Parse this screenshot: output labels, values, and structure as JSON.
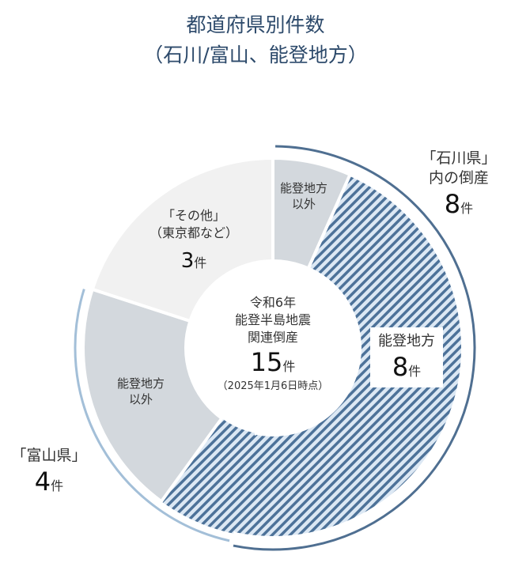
{
  "title": {
    "line1": "都道府県別件数",
    "line2": "（石川/富山、能登地方）"
  },
  "chart_data": {
    "type": "pie",
    "donut": true,
    "total": 15,
    "unit": "件",
    "center": {
      "line1": "令和6年",
      "line2": "能登半島地震",
      "line3": "関連倒産",
      "value": "15",
      "unit": "件",
      "note": "（2025年1月6日時点）"
    },
    "slices": [
      {
        "group": "石川県",
        "label": "能登地方以外",
        "value": 1,
        "fill": "#d3d8dd"
      },
      {
        "group": "石川県",
        "label": "能登地方",
        "value": 7,
        "fill": "hatch"
      },
      {
        "group": "富山県",
        "label": "能登地方",
        "value": 1,
        "fill": "hatch"
      },
      {
        "group": "富山県",
        "label": "能登地方以外",
        "value": 3,
        "fill": "#d3d8dd"
      },
      {
        "group": "その他",
        "label": "その他",
        "value": 3,
        "fill": "#f1f1f1"
      }
    ],
    "labels": {
      "ishikawa_outside": {
        "line1": "能登地方",
        "line2": "以外"
      },
      "noto": {
        "line1": "能登地方",
        "value": "8",
        "unit": "件"
      },
      "toyama_outside": {
        "line1": "能登地方",
        "line2": "以外"
      },
      "other": {
        "line1": "「その他」",
        "line2": "（東京都など）",
        "value": "3",
        "unit": "件"
      },
      "ishikawa": {
        "line1": "「石川県」",
        "line2": "内の倒産",
        "value": "8",
        "unit": "件"
      },
      "toyama": {
        "line1": "「富山県」",
        "value": "4",
        "unit": "件"
      }
    },
    "groups": [
      {
        "name": "石川県",
        "value": 8,
        "color": "#4f6f91"
      },
      {
        "name": "富山県",
        "value": 4,
        "color": "#a3bfd8"
      }
    ],
    "colors": {
      "hatch_stripe": "#4d7299",
      "hatch_bg": "#dce8f4",
      "title": "#2d4a6b"
    }
  }
}
